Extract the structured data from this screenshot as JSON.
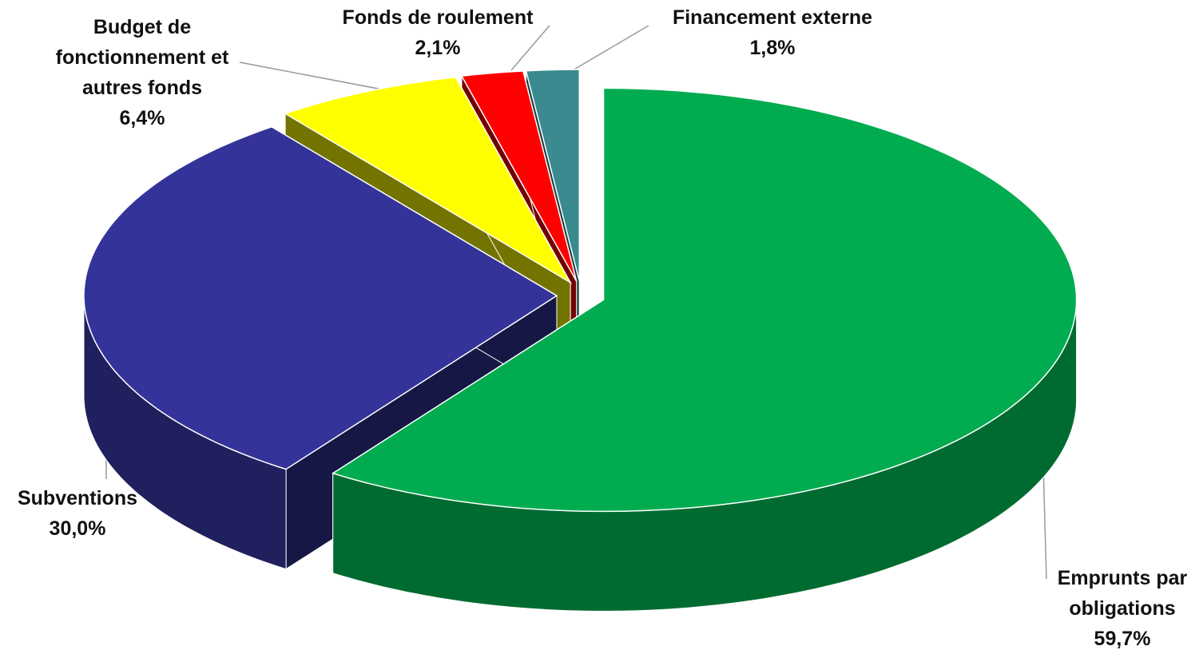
{
  "chart_data": {
    "type": "pie3d",
    "categories": [
      "Emprunts par obligations",
      "Subventions",
      "Budget de fonctionnement et autres fonds",
      "Fonds de roulement",
      "Financement externe"
    ],
    "values": [
      59.7,
      30.0,
      6.4,
      2.1,
      1.8
    ],
    "value_labels": [
      "59,7%",
      "30,0%",
      "6,4%",
      "2,1%",
      "1,8%"
    ],
    "colors": [
      "#00ac4f",
      "#333399",
      "#ffff00",
      "#ff0000",
      "#3a8a8f"
    ]
  }
}
